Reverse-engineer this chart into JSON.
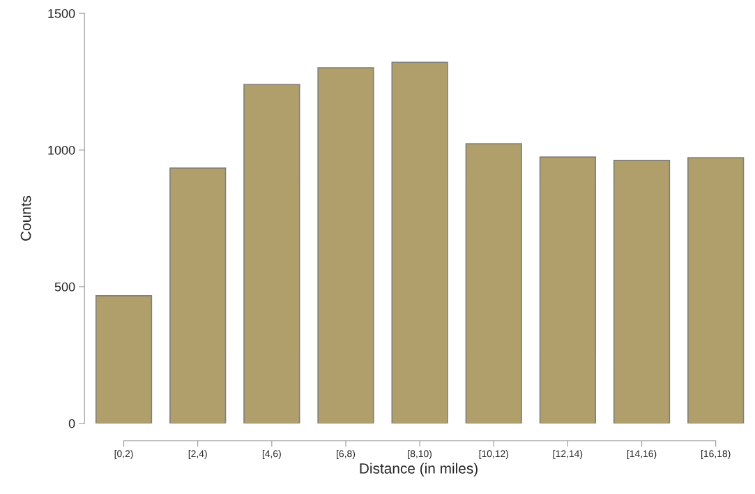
{
  "chart_data": {
    "type": "bar",
    "xlabel": "Distance (in miles)",
    "ylabel": "Counts",
    "categories": [
      "[0,2)",
      "[2,4)",
      "[4,6)",
      "[6,8)",
      "[8,10)",
      "[10,12)",
      "[12,14)",
      "[14,16)",
      "[16,18)"
    ],
    "values": [
      467,
      934,
      1240,
      1301,
      1321,
      1023,
      974,
      962,
      972
    ],
    "color": "#b09f6b",
    "ylim": [
      0,
      1500
    ],
    "yticks": [
      0,
      500,
      1000,
      1500
    ],
    "grid": false
  }
}
